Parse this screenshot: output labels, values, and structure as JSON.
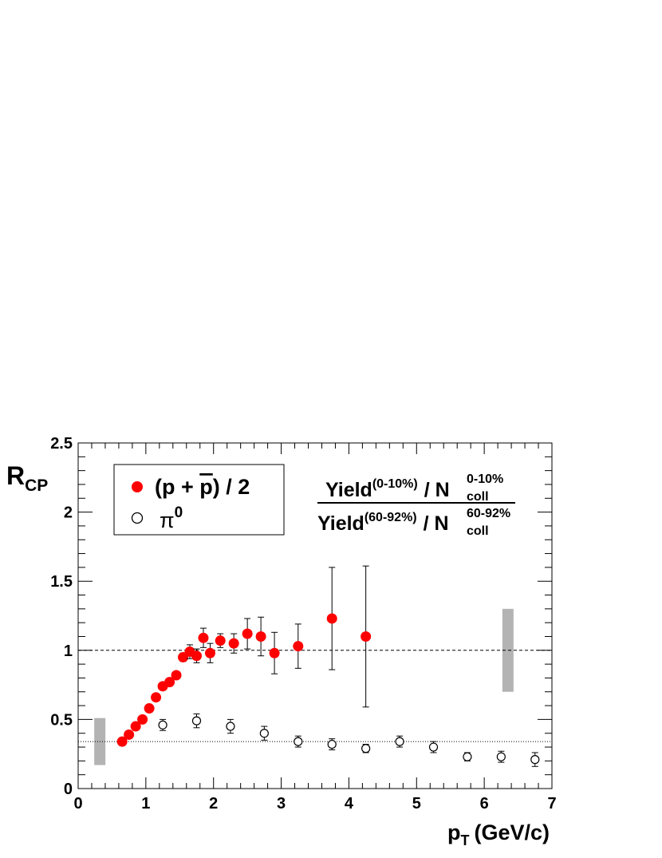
{
  "chart_data": {
    "type": "scatter",
    "xlabel": "p",
    "xlabel_sub": "T",
    "xlabel_unit": "(GeV/c)",
    "ylabel": "R",
    "ylabel_sub": "CP",
    "xlim": [
      0,
      7
    ],
    "ylim": [
      0,
      2.5
    ],
    "x_ticks": [
      "0",
      "1",
      "2",
      "3",
      "4",
      "5",
      "6",
      "7"
    ],
    "y_ticks": [
      "0",
      "0.5",
      "1",
      "1.5",
      "2",
      "2.5"
    ],
    "legend_placement": "top-left",
    "legend": {
      "proton_label_prefix": "(p + ",
      "proton_label_pbar": "p",
      "proton_label_suffix": ") / 2",
      "pion_label": "π",
      "pion_label_sup": "0"
    },
    "formula": {
      "num_yield": "Yield",
      "num_yield_sup": "(0-10%)",
      "num_slash": "/ N",
      "num_n_sup": "0-10%",
      "num_n_sub": "coll",
      "den_yield": "Yield",
      "den_yield_sup": "(60-92%)",
      "den_slash": "/ N",
      "den_n_sup": "60-92%",
      "den_n_sub": "coll"
    },
    "reference_lines": [
      {
        "y": 1.0,
        "style": "dashed"
      },
      {
        "y": 0.34,
        "style": "dotted"
      }
    ],
    "systematic_boxes": [
      {
        "x": 0.32,
        "y_low": 0.17,
        "y_high": 0.51,
        "color": "#b3b3b3"
      },
      {
        "x": 6.35,
        "y_low": 0.7,
        "y_high": 1.3,
        "color": "#b3b3b3"
      }
    ],
    "series": [
      {
        "name": "(p + p̄) / 2",
        "marker": "filled-circle",
        "color": "#ff0000",
        "points": [
          {
            "x": 0.65,
            "y": 0.34,
            "err": 0
          },
          {
            "x": 0.75,
            "y": 0.39,
            "err": 0
          },
          {
            "x": 0.85,
            "y": 0.45,
            "err": 0
          },
          {
            "x": 0.95,
            "y": 0.5,
            "err": 0
          },
          {
            "x": 1.05,
            "y": 0.58,
            "err": 0
          },
          {
            "x": 1.15,
            "y": 0.66,
            "err": 0
          },
          {
            "x": 1.25,
            "y": 0.74,
            "err": 0
          },
          {
            "x": 1.35,
            "y": 0.77,
            "err": 0
          },
          {
            "x": 1.45,
            "y": 0.82,
            "err": 0
          },
          {
            "x": 1.55,
            "y": 0.95,
            "err": 0.03
          },
          {
            "x": 1.65,
            "y": 0.99,
            "err": 0.05
          },
          {
            "x": 1.75,
            "y": 0.96,
            "err": 0.05
          },
          {
            "x": 1.85,
            "y": 1.09,
            "err": 0.07
          },
          {
            "x": 1.95,
            "y": 0.98,
            "err": 0.07
          },
          {
            "x": 2.1,
            "y": 1.07,
            "err": 0.05
          },
          {
            "x": 2.3,
            "y": 1.05,
            "err": 0.07
          },
          {
            "x": 2.5,
            "y": 1.12,
            "err": 0.11
          },
          {
            "x": 2.7,
            "y": 1.1,
            "err": 0.14
          },
          {
            "x": 2.9,
            "y": 0.98,
            "err": 0.15
          },
          {
            "x": 3.25,
            "y": 1.03,
            "err": 0.16
          },
          {
            "x": 3.75,
            "y": 1.23,
            "err": 0.37
          },
          {
            "x": 4.25,
            "y": 1.1,
            "err": 0.51
          }
        ]
      },
      {
        "name": "π0",
        "marker": "open-circle",
        "color": "#000000",
        "points": [
          {
            "x": 1.25,
            "y": 0.46,
            "err": 0.04
          },
          {
            "x": 1.75,
            "y": 0.49,
            "err": 0.05
          },
          {
            "x": 2.25,
            "y": 0.45,
            "err": 0.05
          },
          {
            "x": 2.75,
            "y": 0.4,
            "err": 0.05
          },
          {
            "x": 3.25,
            "y": 0.34,
            "err": 0.04
          },
          {
            "x": 3.75,
            "y": 0.32,
            "err": 0.04
          },
          {
            "x": 4.25,
            "y": 0.29,
            "err": 0.03
          },
          {
            "x": 4.75,
            "y": 0.34,
            "err": 0.04
          },
          {
            "x": 5.25,
            "y": 0.3,
            "err": 0.04
          },
          {
            "x": 5.75,
            "y": 0.23,
            "err": 0.03
          },
          {
            "x": 6.25,
            "y": 0.23,
            "err": 0.04
          },
          {
            "x": 6.75,
            "y": 0.21,
            "err": 0.05
          }
        ]
      }
    ]
  }
}
